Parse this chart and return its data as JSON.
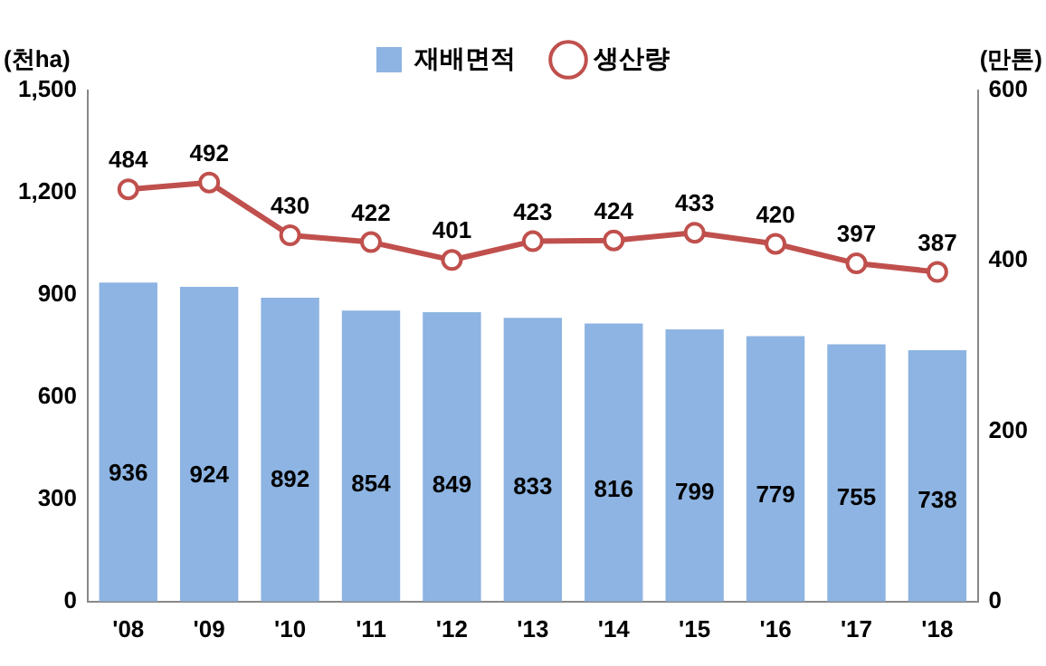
{
  "chart_data": {
    "type": "bar",
    "ylabel": "(천ha)",
    "y2label": "(만톤)",
    "categories": [
      "'08",
      "'09",
      "'10",
      "'11",
      "'12",
      "'13",
      "'14",
      "'15",
      "'16",
      "'17",
      "'18"
    ],
    "series": [
      {
        "name": "재배면적",
        "color": "#8db4e2",
        "values": [
          936,
          924,
          892,
          854,
          849,
          833,
          816,
          799,
          779,
          755,
          738
        ]
      },
      {
        "name": "생산량",
        "type": "line",
        "axis": "y2",
        "color": "#c0504d",
        "values": [
          484,
          492,
          430,
          422,
          401,
          423,
          424,
          433,
          420,
          397,
          387
        ]
      }
    ],
    "ylim": [
      0,
      1500
    ],
    "yticks": [
      {
        "value": 0,
        "label": "0"
      },
      {
        "value": 300,
        "label": "300"
      },
      {
        "value": 600,
        "label": "600"
      },
      {
        "value": 900,
        "label": "900"
      },
      {
        "value": 1200,
        "label": "1,200"
      },
      {
        "value": 1500,
        "label": "1,500"
      }
    ],
    "y2lim": [
      0,
      600
    ],
    "y2ticks": [
      0,
      200,
      400,
      600
    ],
    "data_labels": true,
    "legend": "top",
    "grid": false,
    "marker": "circle",
    "line_style": "solid"
  }
}
